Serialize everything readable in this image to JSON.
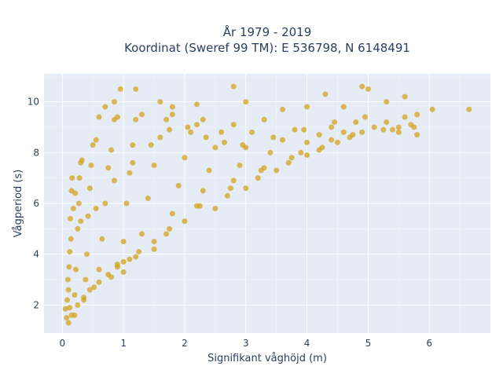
{
  "chart_data": {
    "type": "scatter",
    "title": [
      "År 1979 - 2019",
      "Koordinat (Sweref 99 TM): E 536798, N 6148491"
    ],
    "xlabel": "Signifikant våghöjd (m)",
    "ylabel": "Vågperiod (s)",
    "xlim": [
      -0.3,
      7.0
    ],
    "ylim": [
      0.9,
      11.1
    ],
    "xticks": [
      0,
      1,
      2,
      3,
      4,
      5,
      6
    ],
    "yticks": [
      2,
      4,
      6,
      8,
      10
    ],
    "grid": true,
    "legend": "none",
    "colors": {
      "marker": "#d4a31c",
      "plot_bg": "#e5ecf6",
      "grid": "#ffffff",
      "text": "#2a3f5f"
    },
    "series": [
      {
        "values": [
          [
            0.05,
            1.85
          ],
          [
            0.07,
            1.5
          ],
          [
            0.1,
            1.3
          ],
          [
            0.12,
            1.9
          ],
          [
            0.1,
            2.6
          ],
          [
            0.12,
            4.1
          ],
          [
            0.13,
            5.4
          ],
          [
            0.15,
            6.5
          ],
          [
            0.16,
            7.0
          ],
          [
            0.2,
            1.6
          ],
          [
            0.2,
            2.4
          ],
          [
            0.22,
            3.4
          ],
          [
            0.25,
            5.0
          ],
          [
            0.27,
            6.0
          ],
          [
            0.28,
            7.0
          ],
          [
            0.3,
            7.6
          ],
          [
            0.32,
            7.7
          ],
          [
            0.35,
            2.2
          ],
          [
            0.38,
            3.0
          ],
          [
            0.4,
            4.0
          ],
          [
            0.42,
            5.5
          ],
          [
            0.45,
            6.6
          ],
          [
            0.47,
            7.5
          ],
          [
            0.5,
            8.3
          ],
          [
            0.55,
            8.5
          ],
          [
            0.6,
            9.4
          ],
          [
            0.52,
            2.7
          ],
          [
            0.6,
            3.4
          ],
          [
            0.65,
            4.6
          ],
          [
            0.7,
            6.0
          ],
          [
            0.75,
            7.4
          ],
          [
            0.8,
            8.1
          ],
          [
            0.85,
            9.3
          ],
          [
            0.9,
            9.4
          ],
          [
            0.8,
            3.1
          ],
          [
            0.9,
            3.6
          ],
          [
            1.0,
            4.5
          ],
          [
            1.05,
            6.0
          ],
          [
            1.1,
            7.2
          ],
          [
            1.15,
            8.3
          ],
          [
            1.2,
            9.3
          ],
          [
            1.3,
            9.5
          ],
          [
            1.0,
            3.3
          ],
          [
            1.2,
            3.9
          ],
          [
            1.3,
            4.8
          ],
          [
            1.4,
            6.2
          ],
          [
            1.5,
            7.5
          ],
          [
            1.6,
            8.6
          ],
          [
            1.7,
            9.3
          ],
          [
            1.8,
            9.5
          ],
          [
            1.5,
            4.2
          ],
          [
            1.7,
            4.8
          ],
          [
            1.8,
            5.6
          ],
          [
            1.9,
            6.7
          ],
          [
            2.0,
            7.8
          ],
          [
            2.1,
            8.8
          ],
          [
            2.2,
            9.1
          ],
          [
            2.3,
            9.3
          ],
          [
            2.0,
            5.3
          ],
          [
            2.2,
            5.9
          ],
          [
            2.3,
            6.5
          ],
          [
            2.4,
            7.3
          ],
          [
            2.5,
            8.2
          ],
          [
            2.6,
            8.8
          ],
          [
            2.8,
            9.1
          ],
          [
            2.5,
            5.8
          ],
          [
            2.7,
            6.3
          ],
          [
            2.8,
            6.9
          ],
          [
            2.9,
            7.5
          ],
          [
            3.0,
            8.2
          ],
          [
            3.1,
            8.8
          ],
          [
            3.3,
            9.3
          ],
          [
            3.0,
            6.6
          ],
          [
            3.2,
            7.0
          ],
          [
            3.3,
            7.4
          ],
          [
            3.4,
            8.0
          ],
          [
            3.6,
            8.5
          ],
          [
            3.8,
            8.9
          ],
          [
            3.5,
            7.3
          ],
          [
            3.7,
            7.6
          ],
          [
            3.9,
            8.0
          ],
          [
            4.0,
            8.4
          ],
          [
            4.2,
            8.7
          ],
          [
            4.4,
            9.0
          ],
          [
            4.0,
            7.9
          ],
          [
            4.2,
            8.1
          ],
          [
            4.4,
            8.5
          ],
          [
            4.6,
            8.8
          ],
          [
            4.8,
            9.2
          ],
          [
            4.5,
            8.4
          ],
          [
            4.7,
            8.6
          ],
          [
            4.9,
            8.8
          ],
          [
            5.1,
            9.0
          ],
          [
            5.3,
            9.2
          ],
          [
            5.5,
            9.0
          ],
          [
            5.5,
            8.8
          ],
          [
            5.7,
            9.1
          ],
          [
            5.8,
            8.7
          ],
          [
            0.7,
            9.8
          ],
          [
            0.85,
            10.0
          ],
          [
            0.95,
            10.5
          ],
          [
            1.2,
            10.5
          ],
          [
            1.6,
            10.0
          ],
          [
            1.8,
            9.8
          ],
          [
            2.2,
            9.9
          ],
          [
            2.8,
            10.6
          ],
          [
            3.0,
            10.0
          ],
          [
            3.6,
            9.7
          ],
          [
            4.0,
            9.8
          ],
          [
            4.3,
            10.3
          ],
          [
            4.6,
            9.8
          ],
          [
            4.9,
            10.6
          ],
          [
            5.0,
            10.5
          ],
          [
            5.3,
            10.0
          ],
          [
            5.6,
            10.2
          ],
          [
            5.8,
            9.5
          ],
          [
            6.05,
            9.7
          ],
          [
            6.65,
            9.7
          ],
          [
            5.4,
            8.9
          ],
          [
            5.6,
            9.4
          ],
          [
            0.9,
            3.5
          ],
          [
            1.1,
            3.8
          ],
          [
            0.6,
            2.9
          ],
          [
            0.35,
            2.3
          ],
          [
            0.25,
            2.0
          ],
          [
            0.15,
            1.6
          ],
          [
            0.45,
            2.6
          ],
          [
            0.75,
            3.2
          ],
          [
            1.0,
            3.7
          ],
          [
            1.25,
            4.1
          ],
          [
            1.5,
            4.5
          ],
          [
            1.75,
            5.0
          ],
          [
            2.25,
            5.9
          ],
          [
            2.75,
            6.6
          ],
          [
            3.25,
            7.3
          ],
          [
            3.75,
            7.8
          ],
          [
            4.25,
            8.2
          ],
          [
            4.75,
            8.7
          ],
          [
            5.25,
            8.9
          ],
          [
            5.75,
            9.0
          ],
          [
            0.08,
            2.2
          ],
          [
            0.09,
            3.0
          ],
          [
            0.11,
            3.5
          ],
          [
            0.14,
            4.6
          ],
          [
            0.18,
            5.8
          ],
          [
            0.21,
            6.4
          ],
          [
            0.3,
            5.3
          ],
          [
            0.55,
            5.8
          ],
          [
            0.85,
            6.9
          ],
          [
            1.15,
            7.6
          ],
          [
            1.45,
            8.3
          ],
          [
            1.75,
            8.9
          ],
          [
            2.05,
            9.0
          ],
          [
            2.35,
            8.6
          ],
          [
            2.65,
            8.4
          ],
          [
            2.95,
            8.3
          ],
          [
            3.45,
            8.6
          ],
          [
            3.95,
            8.9
          ],
          [
            4.45,
            9.2
          ],
          [
            4.95,
            9.4
          ]
        ]
      }
    ]
  }
}
